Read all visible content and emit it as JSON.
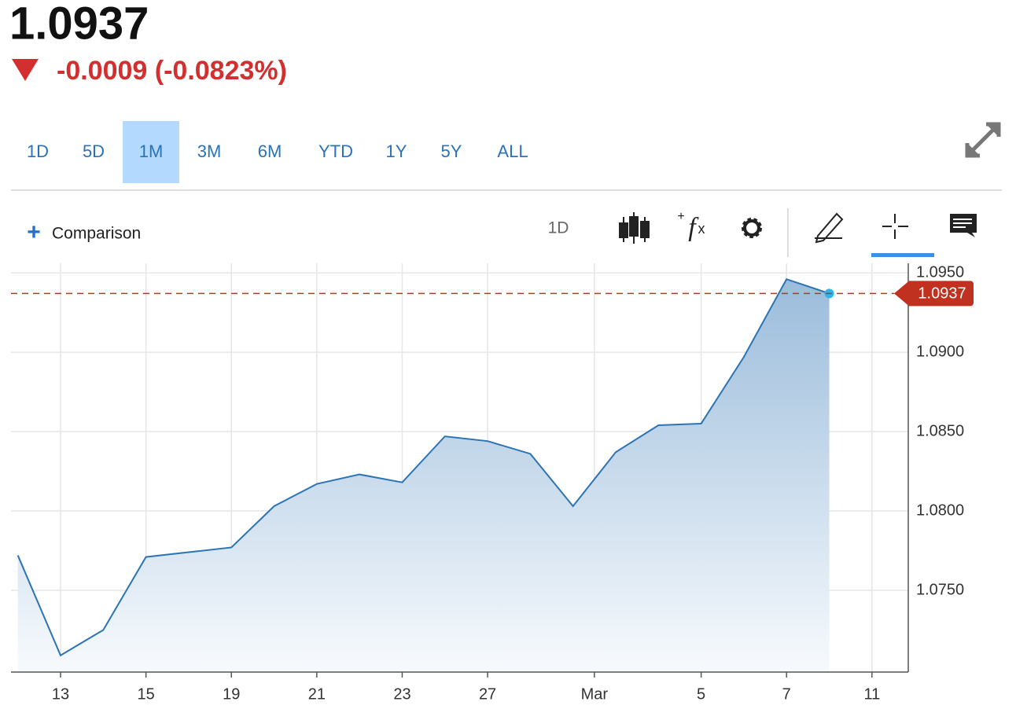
{
  "header": {
    "price": "1.0937",
    "change": "-0.0009 (-0.0823%)"
  },
  "ui": {
    "ranges": [
      "1D",
      "5D",
      "1M",
      "3M",
      "6M",
      "YTD",
      "1Y",
      "5Y",
      "ALL"
    ],
    "selected_range": 2,
    "comparison": "Comparison",
    "interval": "1D"
  },
  "chart_data": {
    "type": "area",
    "color": "#2c74b3",
    "fill_top": "#9bbcdb",
    "fill_bottom": "#f7fafd",
    "grid": true,
    "x": [
      0,
      1,
      2,
      3,
      4,
      5,
      6,
      7,
      8,
      9,
      10,
      11,
      12,
      13,
      14,
      15,
      16,
      17,
      18,
      19
    ],
    "values": [
      1.0772,
      1.0709,
      1.0725,
      1.0771,
      1.0774,
      1.0777,
      1.0803,
      1.0817,
      1.0823,
      1.0818,
      1.0847,
      1.0844,
      1.0836,
      1.0803,
      1.0837,
      1.0854,
      1.0855,
      1.0897,
      1.0946,
      1.0937
    ],
    "xlim": [
      -0.16,
      20.85
    ],
    "xticks": [
      {
        "value": 1,
        "label": "13"
      },
      {
        "value": 3,
        "label": "15"
      },
      {
        "value": 5,
        "label": "19"
      },
      {
        "value": 7,
        "label": "21"
      },
      {
        "value": 9,
        "label": "23"
      },
      {
        "value": 11,
        "label": "27"
      },
      {
        "value": 13.5,
        "label": "Mar"
      },
      {
        "value": 16,
        "label": "5"
      },
      {
        "value": 18,
        "label": "7"
      },
      {
        "value": 20,
        "label": "11"
      }
    ],
    "ylim": [
      1.06985,
      1.0956
    ],
    "yticks": [
      {
        "value": 1.075,
        "label": "1.0750"
      },
      {
        "value": 1.08,
        "label": "1.0800"
      },
      {
        "value": 1.085,
        "label": "1.0850"
      },
      {
        "value": 1.09,
        "label": "1.0900"
      },
      {
        "value": 1.095,
        "label": "1.0950"
      }
    ],
    "reference_line": {
      "value": 1.0937,
      "color": "#c0321f"
    },
    "last_point_color": "#29b6f6"
  }
}
